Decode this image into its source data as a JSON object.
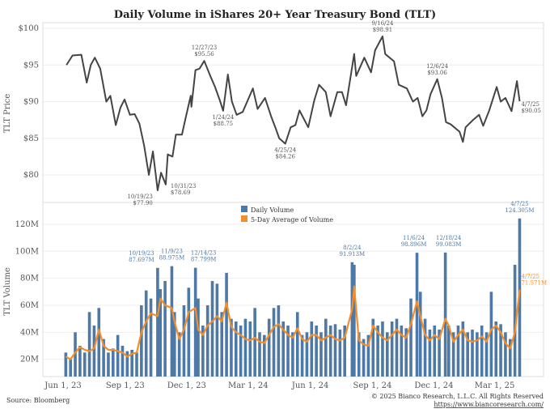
{
  "chart_data": [
    {
      "type": "line",
      "title": "Daily Volume in iShares 20+ Year Treasury Bond (TLT)",
      "ylabel": "TLT Price",
      "ylim": [
        76.5,
        100.8
      ],
      "yticks": [
        "$80",
        "$85",
        "$90",
        "$95",
        "$100"
      ],
      "ytick_values": [
        80,
        85,
        90,
        95,
        100
      ],
      "grid": true,
      "line_color": "#444444",
      "series": [
        {
          "x": [
            "2023-06-06",
            "2023-06-15",
            "2023-06-28",
            "2023-07-06",
            "2023-07-12",
            "2023-07-18",
            "2023-07-26",
            "2023-08-04",
            "2023-08-10",
            "2023-08-18",
            "2023-08-25",
            "2023-08-31",
            "2023-09-08",
            "2023-09-15",
            "2023-09-22",
            "2023-09-29",
            "2023-10-06",
            "2023-10-12",
            "2023-10-19",
            "2023-10-24",
            "2023-10-31",
            "2023-11-03",
            "2023-11-10",
            "2023-11-15",
            "2023-11-24",
            "2023-11-30",
            "2023-12-07",
            "2023-12-08",
            "2023-12-14",
            "2023-12-20",
            "2023-12-27",
            "2024-01-05",
            "2024-01-12",
            "2024-01-19",
            "2024-01-24",
            "2024-01-31",
            "2024-02-06",
            "2024-02-13",
            "2024-02-22",
            "2024-03-01",
            "2024-03-08",
            "2024-03-15",
            "2024-03-26",
            "2024-04-04",
            "2024-04-11",
            "2024-04-16",
            "2024-04-25",
            "2024-05-03",
            "2024-05-10",
            "2024-05-16",
            "2024-05-29",
            "2024-06-07",
            "2024-06-14",
            "2024-06-24",
            "2024-07-01",
            "2024-07-11",
            "2024-07-18",
            "2024-07-24",
            "2024-08-05",
            "2024-08-08",
            "2024-08-20",
            "2024-08-30",
            "2024-09-05",
            "2024-09-16",
            "2024-09-20",
            "2024-10-03",
            "2024-10-10",
            "2024-10-22",
            "2024-10-31",
            "2024-11-07",
            "2024-11-14",
            "2024-11-20",
            "2024-11-26",
            "2024-12-06",
            "2024-12-13",
            "2024-12-19",
            "2024-12-26",
            "2025-01-08",
            "2025-01-13",
            "2025-01-17",
            "2025-01-28",
            "2025-02-06",
            "2025-02-12",
            "2025-02-21",
            "2025-03-04",
            "2025-03-10",
            "2025-03-17",
            "2025-03-26",
            "2025-04-03",
            "2025-04-07"
          ],
          "y": [
            95.0,
            96.3,
            96.4,
            92.6,
            95.0,
            96.0,
            94.5,
            90.0,
            90.8,
            86.8,
            89.2,
            90.3,
            88.2,
            88.3,
            87.0,
            84.0,
            80.0,
            83.2,
            77.9,
            80.3,
            78.69,
            82.8,
            82.5,
            85.5,
            85.5,
            88.0,
            90.8,
            89.3,
            94.3,
            94.5,
            95.56,
            93.5,
            92.0,
            90.2,
            88.75,
            93.7,
            90.0,
            88.2,
            88.6,
            90.3,
            91.8,
            89.0,
            90.5,
            88.0,
            86.3,
            85.0,
            84.26,
            86.5,
            86.8,
            88.8,
            86.5,
            90.2,
            92.3,
            91.3,
            88.0,
            91.3,
            91.3,
            89.5,
            96.5,
            93.5,
            96.0,
            94.0,
            97.0,
            98.91,
            96.5,
            95.5,
            92.3,
            91.8,
            90.0,
            90.5,
            88.0,
            88.8,
            91.0,
            93.06,
            90.5,
            87.2,
            86.9,
            85.9,
            84.5,
            86.5,
            87.5,
            88.2,
            86.7,
            88.8,
            92.0,
            90.0,
            90.5,
            88.7,
            92.8,
            90.05
          ]
        }
      ],
      "annotations": [
        {
          "date": "2023-10-19",
          "value": 77.9,
          "lines": [
            "10/19/23",
            "$77.90"
          ]
        },
        {
          "date": "2023-10-31",
          "value": 78.69,
          "lines": [
            "10/31/23",
            "$78.69"
          ]
        },
        {
          "date": "2023-12-27",
          "value": 95.56,
          "lines": [
            "12/27/23",
            "$95.56"
          ]
        },
        {
          "date": "2024-01-24",
          "value": 88.75,
          "lines": [
            "1/24/24",
            "$88.75"
          ]
        },
        {
          "date": "2024-04-25",
          "value": 84.26,
          "lines": [
            "4/25/24",
            "$84.26"
          ]
        },
        {
          "date": "2024-09-16",
          "value": 98.91,
          "lines": [
            "9/16/24",
            "$98.91"
          ]
        },
        {
          "date": "2024-12-06",
          "value": 93.06,
          "lines": [
            "12/6/24",
            "$93.06"
          ]
        },
        {
          "date": "2025-04-07",
          "value": 90.05,
          "lines": [
            "4/7/25",
            "$90.05"
          ]
        }
      ]
    },
    {
      "type": "bar",
      "ylabel": "TLT Volume",
      "ylim": [
        7,
        135
      ],
      "yticks": [
        "20M",
        "40M",
        "60M",
        "80M",
        "100M",
        "120M"
      ],
      "ytick_values": [
        20,
        40,
        60,
        80,
        100,
        120
      ],
      "grid": true,
      "legend": "top-center",
      "xticks": [
        "Jun 1, 23",
        "Sep 1, 23",
        "Dec 1, 23",
        "Mar 1, 24",
        "Jun 1, 24",
        "Sep 1, 24",
        "Dec 1, 24",
        "Mar 1, 25"
      ],
      "xtick_dates": [
        "2023-06-01",
        "2023-09-01",
        "2023-12-01",
        "2024-03-01",
        "2024-06-01",
        "2024-09-01",
        "2024-12-01",
        "2025-03-01"
      ],
      "x": [
        "2023-06-05",
        "2023-06-12",
        "2023-06-19",
        "2023-06-26",
        "2023-07-03",
        "2023-07-10",
        "2023-07-17",
        "2023-07-24",
        "2023-07-31",
        "2023-08-07",
        "2023-08-14",
        "2023-08-21",
        "2023-08-28",
        "2023-09-04",
        "2023-09-11",
        "2023-09-18",
        "2023-09-25",
        "2023-10-02",
        "2023-10-09",
        "2023-10-19",
        "2023-10-23",
        "2023-10-30",
        "2023-11-09",
        "2023-11-13",
        "2023-11-20",
        "2023-11-27",
        "2023-12-04",
        "2023-12-14",
        "2023-12-18",
        "2023-12-25",
        "2024-01-01",
        "2024-01-08",
        "2024-01-15",
        "2024-01-22",
        "2024-01-29",
        "2024-02-05",
        "2024-02-12",
        "2024-02-19",
        "2024-02-26",
        "2024-03-04",
        "2024-03-11",
        "2024-03-18",
        "2024-03-25",
        "2024-04-01",
        "2024-04-08",
        "2024-04-15",
        "2024-04-22",
        "2024-04-29",
        "2024-05-06",
        "2024-05-13",
        "2024-05-20",
        "2024-05-27",
        "2024-06-03",
        "2024-06-10",
        "2024-06-17",
        "2024-06-24",
        "2024-07-01",
        "2024-07-08",
        "2024-07-15",
        "2024-07-22",
        "2024-08-02",
        "2024-08-05",
        "2024-08-12",
        "2024-08-19",
        "2024-08-26",
        "2024-09-02",
        "2024-09-09",
        "2024-09-16",
        "2024-09-23",
        "2024-09-30",
        "2024-10-07",
        "2024-10-14",
        "2024-10-21",
        "2024-10-28",
        "2024-11-06",
        "2024-11-11",
        "2024-11-18",
        "2024-11-25",
        "2024-12-02",
        "2024-12-09",
        "2024-12-18",
        "2024-12-23",
        "2024-12-30",
        "2025-01-06",
        "2025-01-13",
        "2025-01-20",
        "2025-01-27",
        "2025-02-03",
        "2025-02-10",
        "2025-02-17",
        "2025-02-24",
        "2025-03-03",
        "2025-03-10",
        "2025-03-17",
        "2025-03-24",
        "2025-03-31",
        "2025-04-07"
      ],
      "series": [
        {
          "name": "Daily Volume",
          "color": "#4e79a7",
          "values": [
            25,
            20,
            40,
            30,
            25,
            55,
            45,
            58,
            35,
            25,
            28,
            38,
            30,
            26,
            27,
            25,
            60,
            71,
            65,
            87.697,
            72,
            78,
            88.975,
            55,
            40,
            60,
            73,
            87.799,
            65,
            45,
            60,
            78,
            76,
            55,
            84,
            50,
            48,
            45,
            50,
            48,
            58,
            40,
            38,
            50,
            58,
            60,
            48,
            45,
            40,
            55,
            38,
            40,
            48,
            45,
            40,
            50,
            45,
            46,
            42,
            45,
            91.913,
            90,
            40,
            35,
            38,
            50,
            45,
            48,
            40,
            48,
            50,
            45,
            43,
            65,
            98.896,
            70,
            50,
            42,
            45,
            42,
            99.083,
            45,
            40,
            45,
            48,
            40,
            42,
            40,
            45,
            40,
            70,
            48,
            46,
            40,
            35,
            90,
            124.305
          ]
        },
        {
          "name": "5-Day Average of Volume",
          "color": "#f28e2b",
          "values": [
            22,
            20,
            25,
            29,
            27,
            26,
            28,
            42,
            30,
            27,
            27,
            26,
            25,
            22,
            24,
            25,
            40,
            48,
            54,
            52,
            65,
            60,
            58,
            48,
            35,
            42,
            55,
            58,
            42,
            38,
            45,
            48,
            52,
            48,
            62,
            44,
            40,
            38,
            35,
            34,
            36,
            33,
            32,
            38,
            44,
            46,
            42,
            38,
            36,
            43,
            35,
            33,
            38,
            38,
            34,
            36,
            38,
            35,
            34,
            36,
            57,
            74,
            34,
            31,
            30,
            45,
            40,
            36,
            34,
            38,
            42,
            38,
            36,
            46,
            63,
            52,
            38,
            34,
            38,
            35,
            50,
            45,
            33,
            38,
            42,
            34,
            33,
            34,
            37,
            33,
            42,
            45,
            40,
            32,
            28,
            40,
            71.571
          ]
        }
      ],
      "annotations": [
        {
          "series": 0,
          "date": "2023-10-19",
          "value": 87.697,
          "lines": [
            "10/19/23",
            "87.697M"
          ]
        },
        {
          "series": 0,
          "date": "2023-11-09",
          "value": 88.975,
          "lines": [
            "11/9/23",
            "88.975M"
          ]
        },
        {
          "series": 0,
          "date": "2023-12-14",
          "value": 87.799,
          "lines": [
            "12/14/23",
            "87.799M"
          ]
        },
        {
          "series": 0,
          "date": "2024-08-02",
          "value": 91.913,
          "lines": [
            "8/2/24",
            "91.913M"
          ]
        },
        {
          "series": 0,
          "date": "2024-11-06",
          "value": 98.896,
          "lines": [
            "11/6/24",
            "98.896M"
          ]
        },
        {
          "series": 0,
          "date": "2024-12-18",
          "value": 99.083,
          "lines": [
            "12/18/24",
            "99.083M"
          ]
        },
        {
          "series": 0,
          "date": "2025-04-07",
          "value": 124.305,
          "lines": [
            "4/7/25",
            "124.305M"
          ]
        },
        {
          "series": 1,
          "date": "2025-04-07",
          "value": 71.571,
          "lines": [
            "4/7/25",
            "71.571M"
          ]
        }
      ]
    }
  ],
  "footer": {
    "source": "Source: Bloomberg",
    "copyright": "© 2025 Bianco Research, L.L.C. All Rights Reserved",
    "url": "https://www.biancoresearch.com/"
  }
}
